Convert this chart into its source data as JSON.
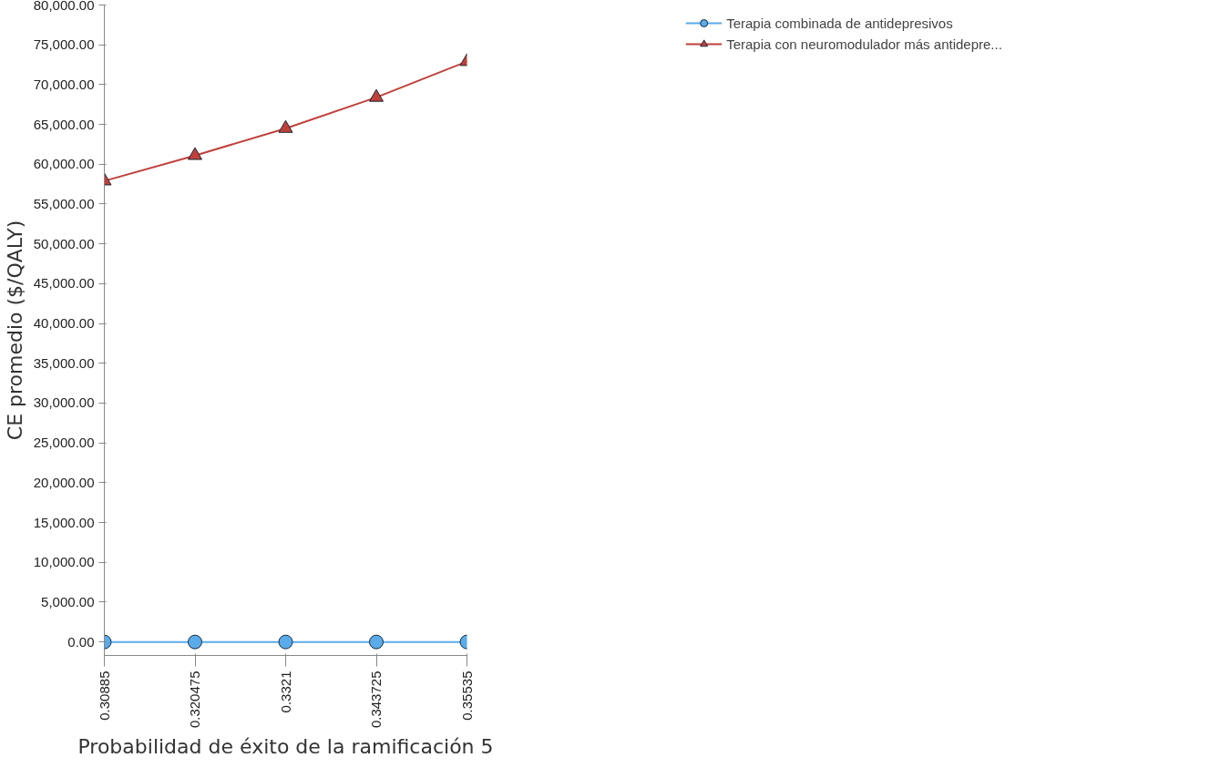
{
  "chart_data": {
    "type": "line",
    "xlabel": "Probabilidad de éxito de la ramificación 5",
    "ylabel": "CE promedio ($/QALY)",
    "x": [
      0.30885,
      0.320475,
      0.3321,
      0.343725,
      0.35535
    ],
    "series": [
      {
        "name": "Terapia combinada de antidepresivos",
        "color": "#5aabea",
        "marker": "circle",
        "values": [
          0,
          0,
          0,
          0,
          0
        ]
      },
      {
        "name": "Terapia con neuromodulador más antidepre...",
        "color": "#c0403a",
        "marker": "triangle",
        "values": [
          57900,
          61100,
          64500,
          68400,
          72900
        ]
      }
    ],
    "xlim": [
      0.30885,
      0.35535
    ],
    "xticks": [
      0.30885,
      0.320475,
      0.3321,
      0.343725,
      0.35535
    ],
    "ylim": [
      -1700,
      80000
    ],
    "yticks": [
      {
        "value": 0,
        "label": "0.00"
      },
      {
        "value": 5000,
        "label": "5,000.00"
      },
      {
        "value": 10000,
        "label": "10,000.00"
      },
      {
        "value": 15000,
        "label": "15,000.00"
      },
      {
        "value": 20000,
        "label": "20,000.00"
      },
      {
        "value": 25000,
        "label": "25,000.00"
      },
      {
        "value": 30000,
        "label": "30,000.00"
      },
      {
        "value": 35000,
        "label": "35,000.00"
      },
      {
        "value": 40000,
        "label": "40,000.00"
      },
      {
        "value": 45000,
        "label": "45,000.00"
      },
      {
        "value": 50000,
        "label": "50,000.00"
      },
      {
        "value": 55000,
        "label": "55,000.00"
      },
      {
        "value": 60000,
        "label": "60,000.00"
      },
      {
        "value": 65000,
        "label": "65,000.00"
      },
      {
        "value": 70000,
        "label": "70,000.00"
      },
      {
        "value": 75000,
        "label": "75,000.00"
      },
      {
        "value": 80000,
        "label": "80,000.00"
      }
    ],
    "grid": false,
    "legend": "top right"
  }
}
